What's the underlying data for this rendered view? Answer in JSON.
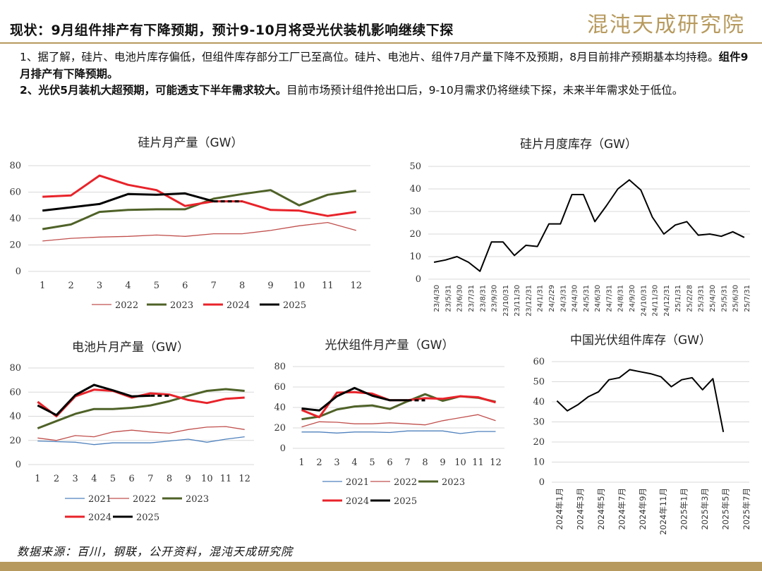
{
  "header": {
    "title": "现状：9月组件排产有下降预期，预计9-10月将受光伏装机影响继续下探",
    "logo": "混沌天成研究院"
  },
  "bullets": {
    "p1_normal": "1、据了解，硅片、电池片库存偏低，但组件库存部分工厂已至高位。硅片、电池片、组件7月产量下降不及预期，8月目前排产预期基本均持稳。",
    "p1_bold": "组件9月排产有下降预期。",
    "p2_bold": "2、光伏5月装机大超预期，可能透支下半年需求较大。",
    "p2_normal": "目前市场预计组件抢出口后，9-10月需求仍将继续下探，未来半年需求处于低位。"
  },
  "source": "数据来源：百川，钢联，公开资料，混沌天成研究院",
  "colors": {
    "c2021": "#4f81bd",
    "c2022": "#c0504d",
    "c2023": "#4f6228",
    "c2024": "#e8232a",
    "c2025": "#000000",
    "brand": "#b79a5e"
  },
  "chart_data": [
    {
      "id": "wafer",
      "type": "line",
      "title": "硅片月产量（GW）",
      "x": [
        1,
        2,
        3,
        4,
        5,
        6,
        7,
        8,
        9,
        10,
        11,
        12
      ],
      "ylim": [
        0,
        80
      ],
      "yticks": [
        0,
        20,
        40,
        60,
        80
      ],
      "series": [
        {
          "name": "2022",
          "values": [
            23,
            25,
            26,
            26.5,
            27.5,
            26.5,
            28.5,
            28.5,
            31,
            34.5,
            37,
            31
          ]
        },
        {
          "name": "2023",
          "values": [
            32,
            35.5,
            45,
            46.5,
            47,
            47,
            55,
            58.5,
            61.5,
            50,
            58,
            61
          ]
        },
        {
          "name": "2024",
          "values": [
            56.5,
            57.5,
            72.5,
            65.5,
            61.5,
            49.5,
            53,
            53,
            46.5,
            46,
            42,
            45
          ]
        },
        {
          "name": "2025",
          "values": [
            46,
            48.5,
            51,
            58.5,
            58,
            59,
            53,
            null,
            null,
            null,
            null,
            null
          ],
          "forecast": {
            "from": 7,
            "to": 8,
            "value": 53
          }
        }
      ],
      "legend": [
        "2022",
        "2023",
        "2024",
        "2025"
      ]
    },
    {
      "id": "wafer_inv",
      "type": "line",
      "title": "硅片月度库存（GW）",
      "categories": [
        "23/4/30",
        "23/5/31",
        "23/6/30",
        "23/7/31",
        "23/8/31",
        "23/9/30",
        "23/10/31",
        "23/11/30",
        "23/12/31",
        "24/1/31",
        "24/2/29",
        "24/3/31",
        "24/4/30",
        "24/5/31",
        "24/6/30",
        "24/7/31",
        "24/8/31",
        "24/9/30",
        "24/10/31",
        "24/11/30",
        "24/12/31",
        "25/1/31",
        "25/2/28",
        "25/3/31",
        "25/4/30",
        "25/5/31",
        "25/6/30",
        "25/7/31"
      ],
      "ylim": [
        0,
        50
      ],
      "yticks": [
        0,
        10,
        20,
        30,
        40,
        50
      ],
      "series": [
        {
          "name": "库存",
          "values": [
            7.5,
            8.5,
            10,
            7.5,
            3.5,
            16.5,
            16.5,
            10.5,
            15,
            14.5,
            24.5,
            24.5,
            37.5,
            37.5,
            25.5,
            32.5,
            40,
            44,
            39.5,
            27.5,
            20,
            24,
            25.5,
            19.5,
            20,
            19,
            21,
            18.5
          ]
        }
      ]
    },
    {
      "id": "cell",
      "type": "line",
      "title": "电池片月产量（GW）",
      "x": [
        1,
        2,
        3,
        4,
        5,
        6,
        7,
        8,
        9,
        10,
        11,
        12
      ],
      "ylim": [
        0,
        80
      ],
      "yticks": [
        0,
        20,
        40,
        60,
        80
      ],
      "series": [
        {
          "name": "2021",
          "values": [
            19.5,
            19,
            18.5,
            16.5,
            18,
            18,
            18,
            19.5,
            21,
            18.5,
            21,
            23
          ]
        },
        {
          "name": "2022",
          "values": [
            22,
            20,
            24,
            23,
            27,
            28.5,
            27,
            26,
            29,
            31,
            31.5,
            29
          ]
        },
        {
          "name": "2023",
          "values": [
            30,
            36,
            42,
            46,
            46,
            47,
            49,
            52.5,
            57,
            61,
            62.5,
            61
          ]
        },
        {
          "name": "2024",
          "values": [
            52,
            40,
            56.5,
            62,
            61,
            55.5,
            59,
            58,
            53.5,
            51,
            54.5,
            55.5
          ]
        },
        {
          "name": "2025",
          "values": [
            49,
            41,
            57.5,
            66,
            61.5,
            56.5,
            57,
            null,
            null,
            null,
            null,
            null
          ],
          "forecast": {
            "from": 7,
            "to": 8,
            "value": 57
          }
        }
      ],
      "legend": [
        "2021",
        "2022",
        "2023",
        "2024",
        "2025"
      ]
    },
    {
      "id": "module",
      "type": "line",
      "title": "光伏组件月产量（GW）",
      "x": [
        1,
        2,
        3,
        4,
        5,
        6,
        7,
        8,
        9,
        10,
        11,
        12
      ],
      "ylim": [
        0,
        80
      ],
      "yticks": [
        0,
        20,
        40,
        60,
        80
      ],
      "series": [
        {
          "name": "2021",
          "values": [
            16,
            16,
            15,
            16,
            16,
            15.5,
            17,
            17,
            17,
            14.5,
            16.5,
            16.5
          ]
        },
        {
          "name": "2022",
          "values": [
            21,
            26,
            25.5,
            24,
            24,
            25,
            24,
            23,
            27,
            30,
            33,
            27
          ]
        },
        {
          "name": "2023",
          "values": [
            28.5,
            31,
            38,
            41,
            42,
            38.5,
            46,
            53,
            46.5,
            51,
            49.5,
            45.5
          ]
        },
        {
          "name": "2024",
          "values": [
            37.5,
            30.5,
            54.5,
            55,
            53.5,
            47,
            47,
            49,
            48.5,
            51,
            50,
            45
          ]
        },
        {
          "name": "2025",
          "values": [
            39,
            37,
            51,
            59,
            51.5,
            47,
            47,
            null,
            null,
            null,
            null,
            null
          ],
          "forecast": {
            "from": 7,
            "to": 8,
            "value": 47
          }
        }
      ],
      "legend": [
        "2021",
        "2022",
        "2023",
        "2024",
        "2025"
      ]
    },
    {
      "id": "china_inv",
      "type": "line",
      "title": "中国光伏组件库存（GW）",
      "categories": [
        "2024年1月",
        "2024年2月",
        "2024年3月",
        "2024年4月",
        "2024年5月",
        "2024年6月",
        "2024年7月",
        "2024年8月",
        "2024年9月",
        "2024年10月",
        "2024年11月",
        "2024年12月",
        "2025年1月",
        "2025年2月",
        "2025年3月",
        "2025年4月",
        "2025年5月",
        "2025年6月",
        "2025年7月"
      ],
      "tick_labels": [
        "2024年1月",
        "2024年3月",
        "2024年5月",
        "2024年7月",
        "2024年9月",
        "2024年11月",
        "2025年1月",
        "2025年3月",
        "2025年5月",
        "2025年7月"
      ],
      "ylim": [
        0,
        60
      ],
      "yticks": [
        0,
        10,
        20,
        30,
        40,
        50,
        60
      ],
      "series": [
        {
          "name": "库存",
          "values": [
            40.5,
            35.5,
            38.5,
            42.5,
            45,
            51,
            52,
            56,
            55,
            54,
            52.5,
            47.5,
            51,
            52,
            46,
            51.5,
            25,
            null,
            null
          ]
        }
      ]
    }
  ]
}
